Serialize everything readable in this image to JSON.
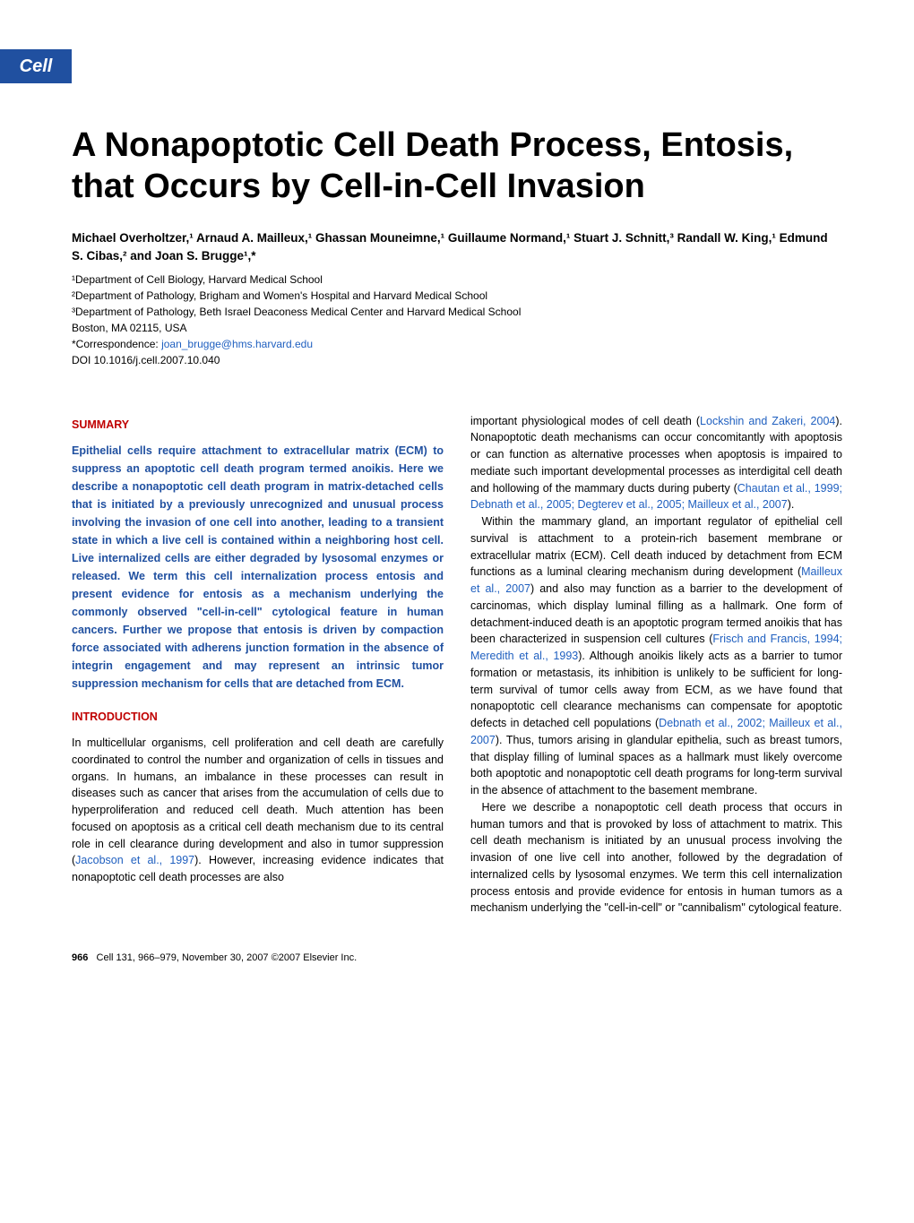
{
  "journal_logo": "Cell",
  "title": "A Nonapoptotic Cell Death Process, Entosis, that Occurs by Cell-in-Cell Invasion",
  "authors_html": "Michael Overholtzer,¹ Arnaud A. Mailleux,¹ Ghassan Mouneimne,¹ Guillaume Normand,¹ Stuart J. Schnitt,³ Randall W. King,¹ Edmund S. Cibas,² and Joan S. Brugge¹,*",
  "affiliations": [
    "¹Department of Cell Biology, Harvard Medical School",
    "²Department of Pathology, Brigham and Women's Hospital and Harvard Medical School",
    "³Department of Pathology, Beth Israel Deaconess Medical Center and Harvard Medical School",
    "Boston, MA 02115, USA"
  ],
  "correspondence_label": "*Correspondence: ",
  "correspondence_email": "joan_brugge@hms.harvard.edu",
  "doi": "DOI 10.1016/j.cell.2007.10.040",
  "summary_head": "SUMMARY",
  "summary_text": "Epithelial cells require attachment to extracellular matrix (ECM) to suppress an apoptotic cell death program termed anoikis. Here we describe a nonapoptotic cell death program in matrix-detached cells that is initiated by a previously unrecognized and unusual process involving the invasion of one cell into another, leading to a transient state in which a live cell is contained within a neighboring host cell. Live internalized cells are either degraded by lysosomal enzymes or released. We term this cell internalization process entosis and present evidence for entosis as a mechanism underlying the commonly observed \"cell-in-cell\" cytological feature in human cancers. Further we propose that entosis is driven by compaction force associated with adherens junction formation in the absence of integrin engagement and may represent an intrinsic tumor suppression mechanism for cells that are detached from ECM.",
  "intro_head": "INTRODUCTION",
  "intro_col1_p1_a": "In multicellular organisms, cell proliferation and cell death are carefully coordinated to control the number and organization of cells in tissues and organs. In humans, an imbalance in these processes can result in diseases such as cancer that arises from the accumulation of cells due to hyperproliferation and reduced cell death. Much attention has been focused on apoptosis as a critical cell death mechanism due to its central role in cell clearance during development and also in tumor suppression (",
  "intro_col1_p1_cite1": "Jacobson et al., 1997",
  "intro_col1_p1_b": "). However, increasing evidence indicates that nonapoptotic cell death processes are also",
  "intro_col2_p1_a": "important physiological modes of cell death (",
  "intro_col2_p1_cite1": "Lockshin and Zakeri, 2004",
  "intro_col2_p1_b": "). Nonapoptotic death mechanisms can occur concomitantly with apoptosis or can function as alternative processes when apoptosis is impaired to mediate such important developmental processes as interdigital cell death and hollowing of the mammary ducts during puberty (",
  "intro_col2_p1_cite2": "Chautan et al., 1999; Debnath et al., 2005; Degterev et al., 2005; Mailleux et al., 2007",
  "intro_col2_p1_c": ").",
  "intro_col2_p2_a": "Within the mammary gland, an important regulator of epithelial cell survival is attachment to a protein-rich basement membrane or extracellular matrix (ECM). Cell death induced by detachment from ECM functions as a luminal clearing mechanism during development (",
  "intro_col2_p2_cite1": "Mailleux et al., 2007",
  "intro_col2_p2_b": ") and also may function as a barrier to the development of carcinomas, which display luminal filling as a hallmark. One form of detachment-induced death is an apoptotic program termed anoikis that has been characterized in suspension cell cultures (",
  "intro_col2_p2_cite2": "Frisch and Francis, 1994; Meredith et al., 1993",
  "intro_col2_p2_c": "). Although anoikis likely acts as a barrier to tumor formation or metastasis, its inhibition is unlikely to be sufficient for long-term survival of tumor cells away from ECM, as we have found that nonapoptotic cell clearance mechanisms can compensate for apoptotic defects in detached cell populations (",
  "intro_col2_p2_cite3": "Debnath et al., 2002; Mailleux et al., 2007",
  "intro_col2_p2_d": "). Thus, tumors arising in glandular epithelia, such as breast tumors, that display filling of luminal spaces as a hallmark must likely overcome both apoptotic and nonapoptotic cell death programs for long-term survival in the absence of attachment to the basement membrane.",
  "intro_col2_p3": "Here we describe a nonapoptotic cell death process that occurs in human tumors and that is provoked by loss of attachment to matrix. This cell death mechanism is initiated by an unusual process involving the invasion of one live cell into another, followed by the degradation of internalized cells by lysosomal enzymes. We term this cell internalization process entosis and provide evidence for entosis in human tumors as a mechanism underlying the \"cell-in-cell\" or \"cannibalism\" cytological feature.",
  "footer_page": "966",
  "footer_rest": "Cell 131, 966–979, November 30, 2007 ©2007 Elsevier Inc."
}
